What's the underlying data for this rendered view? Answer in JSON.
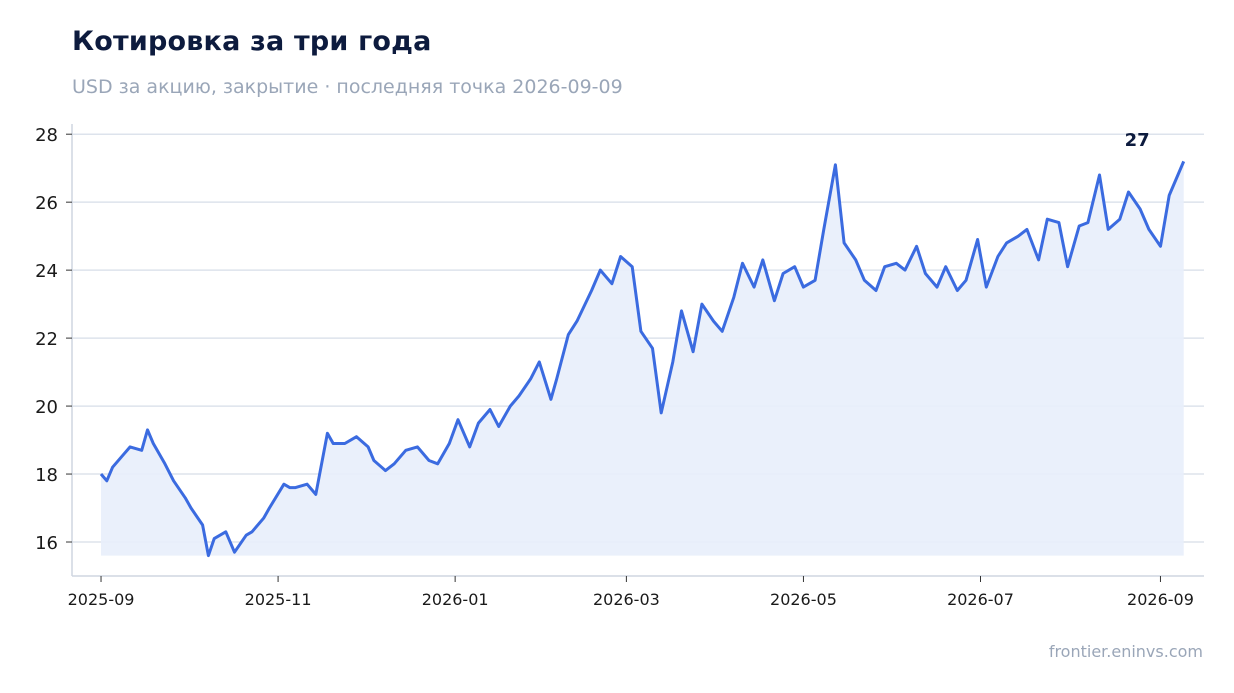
{
  "header": {
    "title": "Котировка за три года",
    "subtitle": "USD за акцию, закрытие · последняя точка 2026-09-09"
  },
  "footer": {
    "source": "frontier.eninvs.com"
  },
  "colors": {
    "line": "#3b6be0",
    "fill": "#e8eefb",
    "grid": "#dde3ec",
    "axis": "#cfd6e0"
  },
  "chart_data": {
    "type": "area",
    "title": "Котировка за три года",
    "subtitle": "USD за акцию, закрытие · последняя точка 2026-09-09",
    "xlabel": "",
    "ylabel": "",
    "ylim": [
      15.0,
      28.3
    ],
    "xlim": [
      "2025-08-22",
      "2026-09-16"
    ],
    "yticks": [
      16,
      18,
      20,
      22,
      24,
      26,
      28
    ],
    "xticks": [
      "2025-09",
      "2025-11",
      "2026-01",
      "2026-03",
      "2026-05",
      "2026-07",
      "2026-09"
    ],
    "grid": "horizontal",
    "last_label": "27",
    "series": [
      {
        "x": [
          "2025-09-01",
          "2025-09-03",
          "2025-09-05",
          "2025-09-09",
          "2025-09-11",
          "2025-09-15",
          "2025-09-17",
          "2025-09-19",
          "2025-09-23",
          "2025-09-26",
          "2025-09-30",
          "2025-10-02",
          "2025-10-06",
          "2025-10-08",
          "2025-10-10",
          "2025-10-14",
          "2025-10-17",
          "2025-10-21",
          "2025-10-23",
          "2025-10-27",
          "2025-10-29",
          "2025-11-03",
          "2025-11-05",
          "2025-11-07",
          "2025-11-11",
          "2025-11-14",
          "2025-11-18",
          "2025-11-20",
          "2025-11-24",
          "2025-11-28",
          "2025-12-02",
          "2025-12-04",
          "2025-12-08",
          "2025-12-11",
          "2025-12-15",
          "2025-12-19",
          "2025-12-23",
          "2025-12-26",
          "2025-12-30",
          "2026-01-02",
          "2026-01-06",
          "2026-01-09",
          "2026-01-13",
          "2026-01-16",
          "2026-01-20",
          "2026-01-23",
          "2026-01-27",
          "2026-01-30",
          "2026-02-03",
          "2026-02-05",
          "2026-02-09",
          "2026-02-12",
          "2026-02-17",
          "2026-02-20",
          "2026-02-24",
          "2026-02-27",
          "2026-03-03",
          "2026-03-06",
          "2026-03-10",
          "2026-03-13",
          "2026-03-17",
          "2026-03-20",
          "2026-03-24",
          "2026-03-27",
          "2026-03-31",
          "2026-04-03",
          "2026-04-07",
          "2026-04-10",
          "2026-04-14",
          "2026-04-17",
          "2026-04-21",
          "2026-04-24",
          "2026-04-28",
          "2026-05-01",
          "2026-05-05",
          "2026-05-08",
          "2026-05-12",
          "2026-05-15",
          "2026-05-19",
          "2026-05-22",
          "2026-05-26",
          "2026-05-29",
          "2026-06-02",
          "2026-06-05",
          "2026-06-09",
          "2026-06-12",
          "2026-06-16",
          "2026-06-19",
          "2026-06-23",
          "2026-06-26",
          "2026-06-30",
          "2026-07-03",
          "2026-07-07",
          "2026-07-10",
          "2026-07-14",
          "2026-07-17",
          "2026-07-21",
          "2026-07-24",
          "2026-07-28",
          "2026-07-31",
          "2026-08-04",
          "2026-08-07",
          "2026-08-11",
          "2026-08-14",
          "2026-08-18",
          "2026-08-21",
          "2026-08-25",
          "2026-08-28",
          "2026-09-01",
          "2026-09-04",
          "2026-09-09"
        ],
        "values": [
          18.0,
          17.8,
          18.2,
          18.6,
          18.8,
          18.7,
          19.3,
          18.9,
          18.3,
          17.8,
          17.3,
          17.0,
          16.5,
          15.6,
          16.1,
          16.3,
          15.7,
          16.2,
          16.3,
          16.7,
          17.0,
          17.7,
          17.6,
          17.6,
          17.7,
          17.4,
          19.2,
          18.9,
          18.9,
          19.1,
          18.8,
          18.4,
          18.1,
          18.3,
          18.7,
          18.8,
          18.4,
          18.3,
          18.9,
          19.6,
          18.8,
          19.5,
          19.9,
          19.4,
          20.0,
          20.3,
          20.8,
          21.3,
          20.2,
          20.8,
          22.1,
          22.5,
          23.4,
          24.0,
          23.6,
          24.4,
          24.1,
          22.2,
          21.7,
          19.8,
          21.3,
          22.8,
          21.6,
          23.0,
          22.5,
          22.2,
          23.2,
          24.2,
          23.5,
          24.3,
          23.1,
          23.9,
          24.1,
          23.5,
          23.7,
          25.2,
          27.1,
          24.8,
          24.3,
          23.7,
          23.4,
          24.1,
          24.2,
          24.0,
          24.7,
          23.9,
          23.5,
          24.1,
          23.4,
          23.7,
          24.9,
          23.5,
          24.4,
          24.8,
          25.0,
          25.2,
          24.3,
          25.5,
          25.4,
          24.1,
          25.3,
          25.4,
          26.8,
          25.2,
          25.5,
          26.3,
          25.8,
          25.2,
          24.7,
          26.2,
          27.2
        ]
      }
    ]
  }
}
